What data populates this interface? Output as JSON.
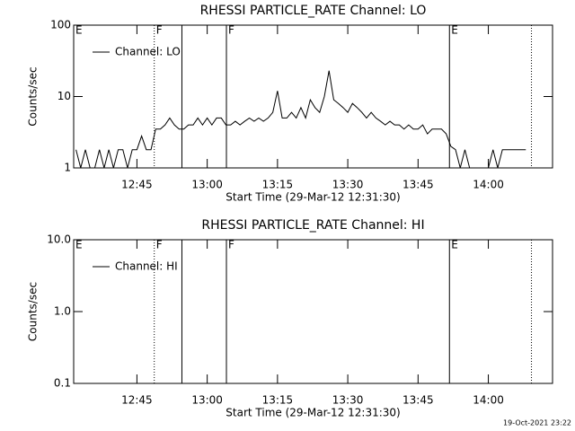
{
  "chart_data": [
    {
      "type": "line",
      "title": "RHESSI PARTICLE_RATE Channel: LO",
      "ylabel": "Counts/sec",
      "xlabel": "Start Time (29-Mar-12 12:31:30)",
      "log_y": true,
      "ylim": [
        1,
        100
      ],
      "yticks": [
        1,
        10,
        100
      ],
      "xlim": [
        751.5,
        853.7
      ],
      "xticks": [
        {
          "value": 765,
          "label": "12:45"
        },
        {
          "value": 780,
          "label": "13:00"
        },
        {
          "value": 795,
          "label": "13:15"
        },
        {
          "value": 810,
          "label": "13:30"
        },
        {
          "value": 825,
          "label": "13:45"
        },
        {
          "value": 840,
          "label": "14:00"
        }
      ],
      "legend": "upper left",
      "markers": [
        {
          "x": 751.5,
          "label": "E",
          "style": "solid"
        },
        {
          "x": 768.7,
          "label": "F",
          "style": "dotted"
        },
        {
          "x": 774.6,
          "style": "solid"
        },
        {
          "x": 784.1,
          "label": "F",
          "style": "solid"
        },
        {
          "x": 831.7,
          "label": "E",
          "style": "solid"
        },
        {
          "x": 849.2,
          "style": "dotted"
        }
      ],
      "series": [
        {
          "name": "Channel: LO",
          "color": "#000000",
          "x": [
            752,
            753,
            754,
            755,
            756,
            757,
            758,
            759,
            760,
            761,
            762,
            763,
            764,
            765,
            766,
            767,
            768,
            769,
            770,
            771,
            772,
            773,
            774,
            775,
            776,
            777,
            778,
            779,
            780,
            781,
            782,
            783,
            784,
            785,
            786,
            787,
            788,
            789,
            790,
            791,
            792,
            793,
            794,
            795,
            796,
            797,
            798,
            799,
            800,
            801,
            802,
            803,
            804,
            805,
            806,
            807,
            808,
            809,
            810,
            811,
            812,
            813,
            814,
            815,
            816,
            817,
            818,
            819,
            820,
            821,
            822,
            823,
            824,
            825,
            826,
            827,
            828,
            829,
            830,
            831,
            832,
            833,
            834,
            835,
            836,
            837,
            838,
            839,
            840,
            841,
            842,
            843,
            844,
            845,
            846,
            847,
            848
          ],
          "values": [
            1.8,
            1,
            1.8,
            1,
            1,
            1.8,
            1,
            1.8,
            1,
            1.8,
            1.8,
            1,
            1.8,
            1.8,
            2.8,
            1.8,
            1.8,
            3.5,
            3.5,
            4,
            5,
            4,
            3.5,
            3.5,
            4,
            4,
            5,
            4,
            5,
            4,
            5,
            5,
            4,
            4,
            4.5,
            4,
            4.5,
            5,
            4.5,
            5,
            4.5,
            5,
            6,
            12,
            5,
            5,
            6,
            5,
            7,
            5,
            9,
            7,
            6,
            10,
            23,
            9,
            8,
            7,
            6,
            8,
            7,
            6,
            5,
            6,
            5,
            4.5,
            4,
            4.5,
            4,
            4,
            3.5,
            4,
            3.5,
            3.5,
            4,
            3,
            3.5,
            3.5,
            3.5,
            3,
            2,
            1.8,
            1,
            1.8,
            1,
            1,
            1,
            1,
            1,
            1.8,
            1,
            1.8,
            1.8,
            1.8,
            1.8,
            1.8,
            1.8
          ]
        }
      ]
    },
    {
      "type": "line",
      "title": "RHESSI PARTICLE_RATE Channel: HI",
      "ylabel": "Counts/sec",
      "xlabel": "Start Time (29-Mar-12 12:31:30)",
      "log_y": true,
      "ylim": [
        0.1,
        10
      ],
      "yticks": [
        0.1,
        {
          "value": 1,
          "label": "1.0"
        },
        {
          "value": 10,
          "label": "10.0"
        }
      ],
      "xlim": [
        751.5,
        853.7
      ],
      "xticks": [
        {
          "value": 765,
          "label": "12:45"
        },
        {
          "value": 780,
          "label": "13:00"
        },
        {
          "value": 795,
          "label": "13:15"
        },
        {
          "value": 810,
          "label": "13:30"
        },
        {
          "value": 825,
          "label": "13:45"
        },
        {
          "value": 840,
          "label": "14:00"
        }
      ],
      "legend": "upper left",
      "markers": [
        {
          "x": 751.5,
          "label": "E",
          "style": "solid"
        },
        {
          "x": 768.7,
          "label": "F",
          "style": "dotted"
        },
        {
          "x": 774.6,
          "style": "solid"
        },
        {
          "x": 784.1,
          "label": "F",
          "style": "solid"
        },
        {
          "x": 831.7,
          "label": "E",
          "style": "solid"
        },
        {
          "x": 849.2,
          "style": "dotted"
        }
      ],
      "series": [
        {
          "name": "Channel: HI",
          "color": "#000000",
          "x": [],
          "values": []
        }
      ]
    }
  ],
  "footer": "19-Oct-2021 23:22"
}
